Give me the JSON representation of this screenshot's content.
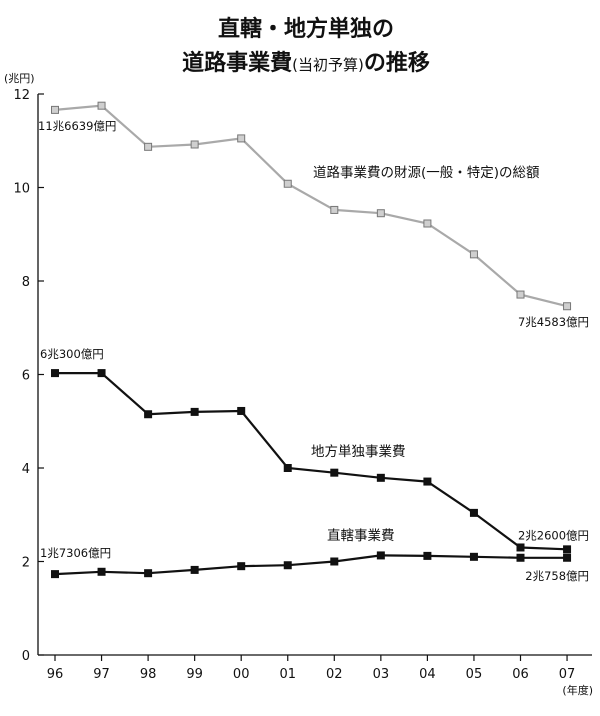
{
  "title": {
    "line1": "直轄・地方単独の",
    "line2_main": "道路事業費",
    "line2_paren": "(当初予算)",
    "line2_end": "の推移"
  },
  "y_unit": "(兆円)",
  "x_unit": "(年度)",
  "chart_data": {
    "type": "line",
    "title": "直轄・地方単独の道路事業費(当初予算)の推移",
    "categories": [
      "96",
      "97",
      "98",
      "99",
      "00",
      "01",
      "02",
      "03",
      "04",
      "05",
      "06",
      "07"
    ],
    "ylim": [
      0,
      12
    ],
    "yticks": [
      0,
      2,
      4,
      6,
      8,
      10,
      12
    ],
    "grid": false,
    "series": [
      {
        "name": "道路事業費の財源(一般・特定)の総額",
        "color": "#a9a9a9",
        "marker_fill": "#cfcfcf",
        "values": [
          11.66,
          11.75,
          10.87,
          10.92,
          11.05,
          10.08,
          9.52,
          9.45,
          9.23,
          8.57,
          7.71,
          7.46
        ]
      },
      {
        "name": "地方単独事業費",
        "color": "#111111",
        "marker_fill": "#111111",
        "values": [
          6.03,
          6.03,
          5.15,
          5.2,
          5.22,
          4.0,
          3.9,
          3.79,
          3.71,
          3.04,
          2.3,
          2.26
        ]
      },
      {
        "name": "直轄事業費",
        "color": "#111111",
        "marker_fill": "#111111",
        "values": [
          1.73,
          1.78,
          1.75,
          1.82,
          1.9,
          1.92,
          2.0,
          2.13,
          2.12,
          2.1,
          2.08,
          2.08
        ]
      }
    ],
    "annotations": [
      {
        "text": "11兆6639億円",
        "series": 0,
        "index": 0
      },
      {
        "text": "7兆4583億円",
        "series": 0,
        "index": 11
      },
      {
        "text": "6兆300億円",
        "series": 1,
        "index": 0
      },
      {
        "text": "2兆2600億円",
        "series": 1,
        "index": 11
      },
      {
        "text": "1兆7306億円",
        "series": 2,
        "index": 0
      },
      {
        "text": "2兆758億円",
        "series": 2,
        "index": 11
      }
    ]
  }
}
